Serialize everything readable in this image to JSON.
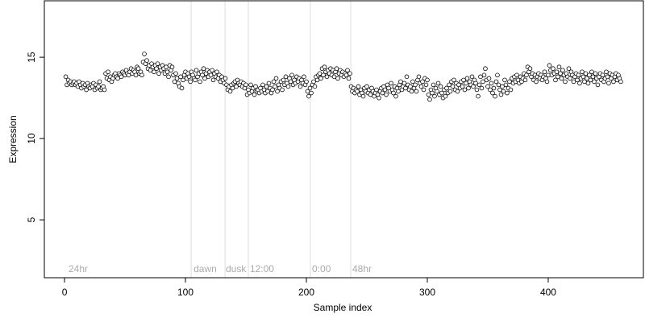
{
  "chart_data": {
    "type": "scatter",
    "xlabel": "Sample index",
    "ylabel": "Expression",
    "xlim": [
      -16.7,
      478.7
    ],
    "ylim": [
      1.44,
      18.47
    ],
    "xticks": [
      0,
      100,
      200,
      300,
      400
    ],
    "yticks": [
      5,
      10,
      15
    ],
    "vlines": [
      104.7,
      132.7,
      152,
      203.3,
      236.7
    ],
    "vline_color": "#dddddd",
    "annotations": [
      {
        "text": "24hr",
        "x": 3.3
      },
      {
        "text": "dawn",
        "x": 106.7
      },
      {
        "text": "dusk",
        "x": 133.3
      },
      {
        "text": "12:00",
        "x": 153.3
      },
      {
        "text": "0:00",
        "x": 204.7
      },
      {
        "text": "48hr",
        "x": 238
      }
    ],
    "series": [
      {
        "name": "Expression",
        "color": "#000000",
        "fill": "#ffffff",
        "x": [
          1,
          2,
          3,
          4,
          5,
          6,
          7,
          8,
          9,
          10,
          11,
          12,
          13,
          14,
          15,
          16,
          17,
          18,
          19,
          20,
          21,
          22,
          23,
          24,
          25,
          26,
          27,
          28,
          29,
          30,
          31,
          32,
          33,
          34,
          35,
          36,
          37,
          38,
          39,
          40,
          41,
          42,
          43,
          44,
          45,
          46,
          47,
          48,
          49,
          50,
          51,
          52,
          53,
          54,
          55,
          56,
          57,
          58,
          59,
          60,
          61,
          62,
          63,
          64,
          65,
          66,
          67,
          68,
          69,
          70,
          71,
          72,
          73,
          74,
          75,
          76,
          77,
          78,
          79,
          80,
          81,
          82,
          83,
          84,
          85,
          86,
          87,
          88,
          89,
          90,
          91,
          92,
          93,
          94,
          95,
          96,
          97,
          98,
          99,
          100,
          101,
          102,
          103,
          104,
          105,
          106,
          107,
          108,
          109,
          110,
          111,
          112,
          113,
          114,
          115,
          116,
          117,
          118,
          119,
          120,
          121,
          122,
          123,
          124,
          125,
          126,
          127,
          128,
          129,
          130,
          131,
          132,
          133,
          134,
          135,
          136,
          137,
          138,
          139,
          140,
          141,
          142,
          143,
          144,
          145,
          146,
          147,
          148,
          149,
          150,
          151,
          152,
          153,
          154,
          155,
          156,
          157,
          158,
          159,
          160,
          161,
          162,
          163,
          164,
          165,
          166,
          167,
          168,
          169,
          170,
          171,
          172,
          173,
          174,
          175,
          176,
          177,
          178,
          179,
          180,
          181,
          182,
          183,
          184,
          185,
          186,
          187,
          188,
          189,
          190,
          191,
          192,
          193,
          194,
          195,
          196,
          197,
          198,
          199,
          200,
          201,
          202,
          203,
          204,
          205,
          206,
          207,
          208,
          209,
          210,
          211,
          212,
          213,
          214,
          215,
          216,
          217,
          218,
          219,
          220,
          221,
          222,
          223,
          224,
          225,
          226,
          227,
          228,
          229,
          230,
          231,
          232,
          233,
          234,
          235,
          236,
          237,
          238,
          239,
          240,
          241,
          242,
          243,
          244,
          245,
          246,
          247,
          248,
          249,
          250,
          251,
          252,
          253,
          254,
          255,
          256,
          257,
          258,
          259,
          260,
          261,
          262,
          263,
          264,
          265,
          266,
          267,
          268,
          269,
          270,
          271,
          272,
          273,
          274,
          275,
          276,
          277,
          278,
          279,
          280,
          281,
          282,
          283,
          284,
          285,
          286,
          287,
          288,
          289,
          290,
          291,
          292,
          293,
          294,
          295,
          296,
          297,
          298,
          299,
          300,
          301,
          302,
          303,
          304,
          305,
          306,
          307,
          308,
          309,
          310,
          311,
          312,
          313,
          314,
          315,
          316,
          317,
          318,
          319,
          320,
          321,
          322,
          323,
          324,
          325,
          326,
          327,
          328,
          329,
          330,
          331,
          332,
          333,
          334,
          335,
          336,
          337,
          338,
          339,
          340,
          341,
          342,
          343,
          344,
          345,
          346,
          347,
          348,
          349,
          350,
          351,
          352,
          353,
          354,
          355,
          356,
          357,
          358,
          359,
          360,
          361,
          362,
          363,
          364,
          365,
          366,
          367,
          368,
          369,
          370,
          371,
          372,
          373,
          374,
          375,
          376,
          377,
          378,
          379,
          380,
          381,
          382,
          383,
          384,
          385,
          386,
          387,
          388,
          389,
          390,
          391,
          392,
          393,
          394,
          395,
          396,
          397,
          398,
          399,
          400,
          401,
          402,
          403,
          404,
          405,
          406,
          407,
          408,
          409,
          410,
          411,
          412,
          413,
          414,
          415,
          416,
          417,
          418,
          419,
          420,
          421,
          422,
          423,
          424,
          425,
          426,
          427,
          428,
          429,
          430,
          431,
          432,
          433,
          434,
          435,
          436,
          437,
          438,
          439,
          440,
          441,
          442,
          443,
          444,
          445,
          446,
          447,
          448,
          449,
          450,
          451,
          452,
          453,
          454,
          455,
          456,
          457,
          458,
          459,
          460
        ],
        "values": [
          13.8,
          13.3,
          13.6,
          13.4,
          13.5,
          13.3,
          13.4,
          13.5,
          13.3,
          13.4,
          13.2,
          13.5,
          13.3,
          13.1,
          13.4,
          13.2,
          13.3,
          13.0,
          13.4,
          13.2,
          13.1,
          13.3,
          13.2,
          13.4,
          13.0,
          13.3,
          13.1,
          13.2,
          13.5,
          13.0,
          13.1,
          13.2,
          13.0,
          14.0,
          13.7,
          14.1,
          13.6,
          13.8,
          13.5,
          13.7,
          13.9,
          14.0,
          13.8,
          13.7,
          14.0,
          13.9,
          13.8,
          14.1,
          14.0,
          13.9,
          14.2,
          14.0,
          13.9,
          14.1,
          14.3,
          14.0,
          14.2,
          14.1,
          13.9,
          14.4,
          14.3,
          14.0,
          14.1,
          13.9,
          14.7,
          15.2,
          14.6,
          14.8,
          14.3,
          14.5,
          14.2,
          14.6,
          14.4,
          14.1,
          14.5,
          14.3,
          14.6,
          14.0,
          14.4,
          14.2,
          14.5,
          14.3,
          14.0,
          14.4,
          14.1,
          13.8,
          14.5,
          14.2,
          14.4,
          13.9,
          13.5,
          14.0,
          13.7,
          13.4,
          13.2,
          13.8,
          13.1,
          13.6,
          13.9,
          14.1,
          13.7,
          14.0,
          13.8,
          13.5,
          14.1,
          13.9,
          13.7,
          13.6,
          14.2,
          13.8,
          14.0,
          13.5,
          14.1,
          13.9,
          14.3,
          13.7,
          14.0,
          14.2,
          13.8,
          14.1,
          13.9,
          14.2,
          13.6,
          14.0,
          13.8,
          14.1,
          13.7,
          13.9,
          13.5,
          13.8,
          13.6,
          13.4,
          13.7,
          13.3,
          13.0,
          13.2,
          12.9,
          13.3,
          13.1,
          13.4,
          13.5,
          13.2,
          13.6,
          13.4,
          13.3,
          13.5,
          13.2,
          13.4,
          13.1,
          13.3,
          12.7,
          13.0,
          12.8,
          13.3,
          12.9,
          13.1,
          12.7,
          13.2,
          12.9,
          13.0,
          12.8,
          13.1,
          12.9,
          13.3,
          13.0,
          12.8,
          13.2,
          12.9,
          13.4,
          13.1,
          12.8,
          13.0,
          13.5,
          13.2,
          13.7,
          12.9,
          13.3,
          13.1,
          13.5,
          13.0,
          13.6,
          13.3,
          13.8,
          13.4,
          13.2,
          13.7,
          13.5,
          13.9,
          13.3,
          13.6,
          13.4,
          13.8,
          13.5,
          13.7,
          13.2,
          13.6,
          13.4,
          13.8,
          13.3,
          13.5,
          12.9,
          12.6,
          13.1,
          12.8,
          13.3,
          13.5,
          13.2,
          13.8,
          13.6,
          13.9,
          14.0,
          13.7,
          14.3,
          13.9,
          14.4,
          14.1,
          13.8,
          14.2,
          14.0,
          14.3,
          13.9,
          14.2,
          13.8,
          14.1,
          14.3,
          13.7,
          14.0,
          14.2,
          13.9,
          14.1,
          13.8,
          14.0,
          13.9,
          14.2,
          13.7,
          14.0,
          13.2,
          12.9,
          13.1,
          12.8,
          13.0,
          12.9,
          13.2,
          12.7,
          13.0,
          12.8,
          12.6,
          13.1,
          12.9,
          13.2,
          12.8,
          13.0,
          12.7,
          13.1,
          12.9,
          12.6,
          12.8,
          13.0,
          12.7,
          12.5,
          12.9,
          13.1,
          12.8,
          13.2,
          13.0,
          12.7,
          13.3,
          13.1,
          12.9,
          13.4,
          13.0,
          12.8,
          13.2,
          12.6,
          13.1,
          12.9,
          13.3,
          13.5,
          13.0,
          13.2,
          13.4,
          13.1,
          13.8,
          13.3,
          13.0,
          13.2,
          12.9,
          13.5,
          13.1,
          13.3,
          12.9,
          13.6,
          13.8,
          13.4,
          13.2,
          13.5,
          13.0,
          13.7,
          13.3,
          13.6,
          12.7,
          12.4,
          13.0,
          12.8,
          13.3,
          12.6,
          13.1,
          12.9,
          13.4,
          12.7,
          13.2,
          12.8,
          12.5,
          13.0,
          12.6,
          13.1,
          12.8,
          13.3,
          12.9,
          13.5,
          13.2,
          13.6,
          13.0,
          13.4,
          12.9,
          13.3,
          13.1,
          13.5,
          13.2,
          13.6,
          13.0,
          13.4,
          13.7,
          13.1,
          13.5,
          13.3,
          13.8,
          13.2,
          13.6,
          13.4,
          13.0,
          12.6,
          13.3,
          13.8,
          13.1,
          13.5,
          13.9,
          14.3,
          13.6,
          13.2,
          13.7,
          13.0,
          13.4,
          12.8,
          13.1,
          12.6,
          13.5,
          13.9,
          13.3,
          13.0,
          12.7,
          13.2,
          12.9,
          13.6,
          13.3,
          12.8,
          13.1,
          13.5,
          13.0,
          13.7,
          13.4,
          13.8,
          13.5,
          13.9,
          13.6,
          13.4,
          13.8,
          13.5,
          13.7,
          14.0,
          13.6,
          13.9,
          14.4,
          14.1,
          14.3,
          13.8,
          14.0,
          13.6,
          13.9,
          13.5,
          13.8,
          14.0,
          13.7,
          13.9,
          13.6,
          13.8,
          14.1,
          13.7,
          13.5,
          13.9,
          14.5,
          14.2,
          13.9,
          14.3,
          14.0,
          13.6,
          14.1,
          13.8,
          14.4,
          14.0,
          13.7,
          14.2,
          13.9,
          13.5,
          14.0,
          13.8,
          14.3,
          13.7,
          14.1,
          13.9,
          13.5,
          13.8,
          14.0,
          13.6,
          13.9,
          13.4,
          13.7,
          14.1,
          13.8,
          13.5,
          14.0,
          13.7,
          13.4,
          13.9,
          13.6,
          14.1,
          13.8,
          13.5,
          14.0,
          13.7,
          13.3,
          13.8,
          14.0,
          13.6,
          13.9,
          13.5,
          13.7,
          14.1,
          13.8,
          13.4,
          14.0,
          13.7,
          13.9,
          13.5,
          13.8,
          14.0,
          13.6,
          13.9,
          13.7,
          13.5
        ]
      }
    ]
  }
}
